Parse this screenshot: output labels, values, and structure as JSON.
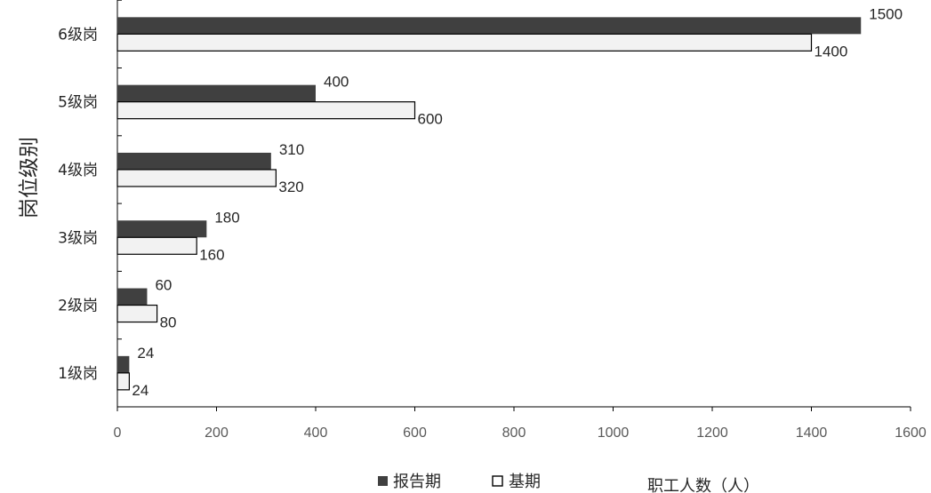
{
  "chart_data": {
    "type": "bar",
    "orientation": "horizontal",
    "categories": [
      "1级岗",
      "2级岗",
      "3级岗",
      "4级岗",
      "5级岗",
      "6级岗"
    ],
    "series": [
      {
        "name": "报告期",
        "values": [
          24,
          60,
          180,
          310,
          400,
          1500
        ],
        "color": "#404040"
      },
      {
        "name": "基期",
        "values": [
          24,
          80,
          160,
          320,
          600,
          1400
        ],
        "color": "#f2f2f2"
      }
    ],
    "xlim": [
      0,
      1600
    ],
    "xticks": [
      "0",
      "200",
      "400",
      "600",
      "800",
      "1000",
      "1200",
      "1400",
      "1600"
    ],
    "xlabel": "职工人数（人）",
    "ylabel": "岗位级别",
    "legend_position": "bottom",
    "grid": false
  }
}
